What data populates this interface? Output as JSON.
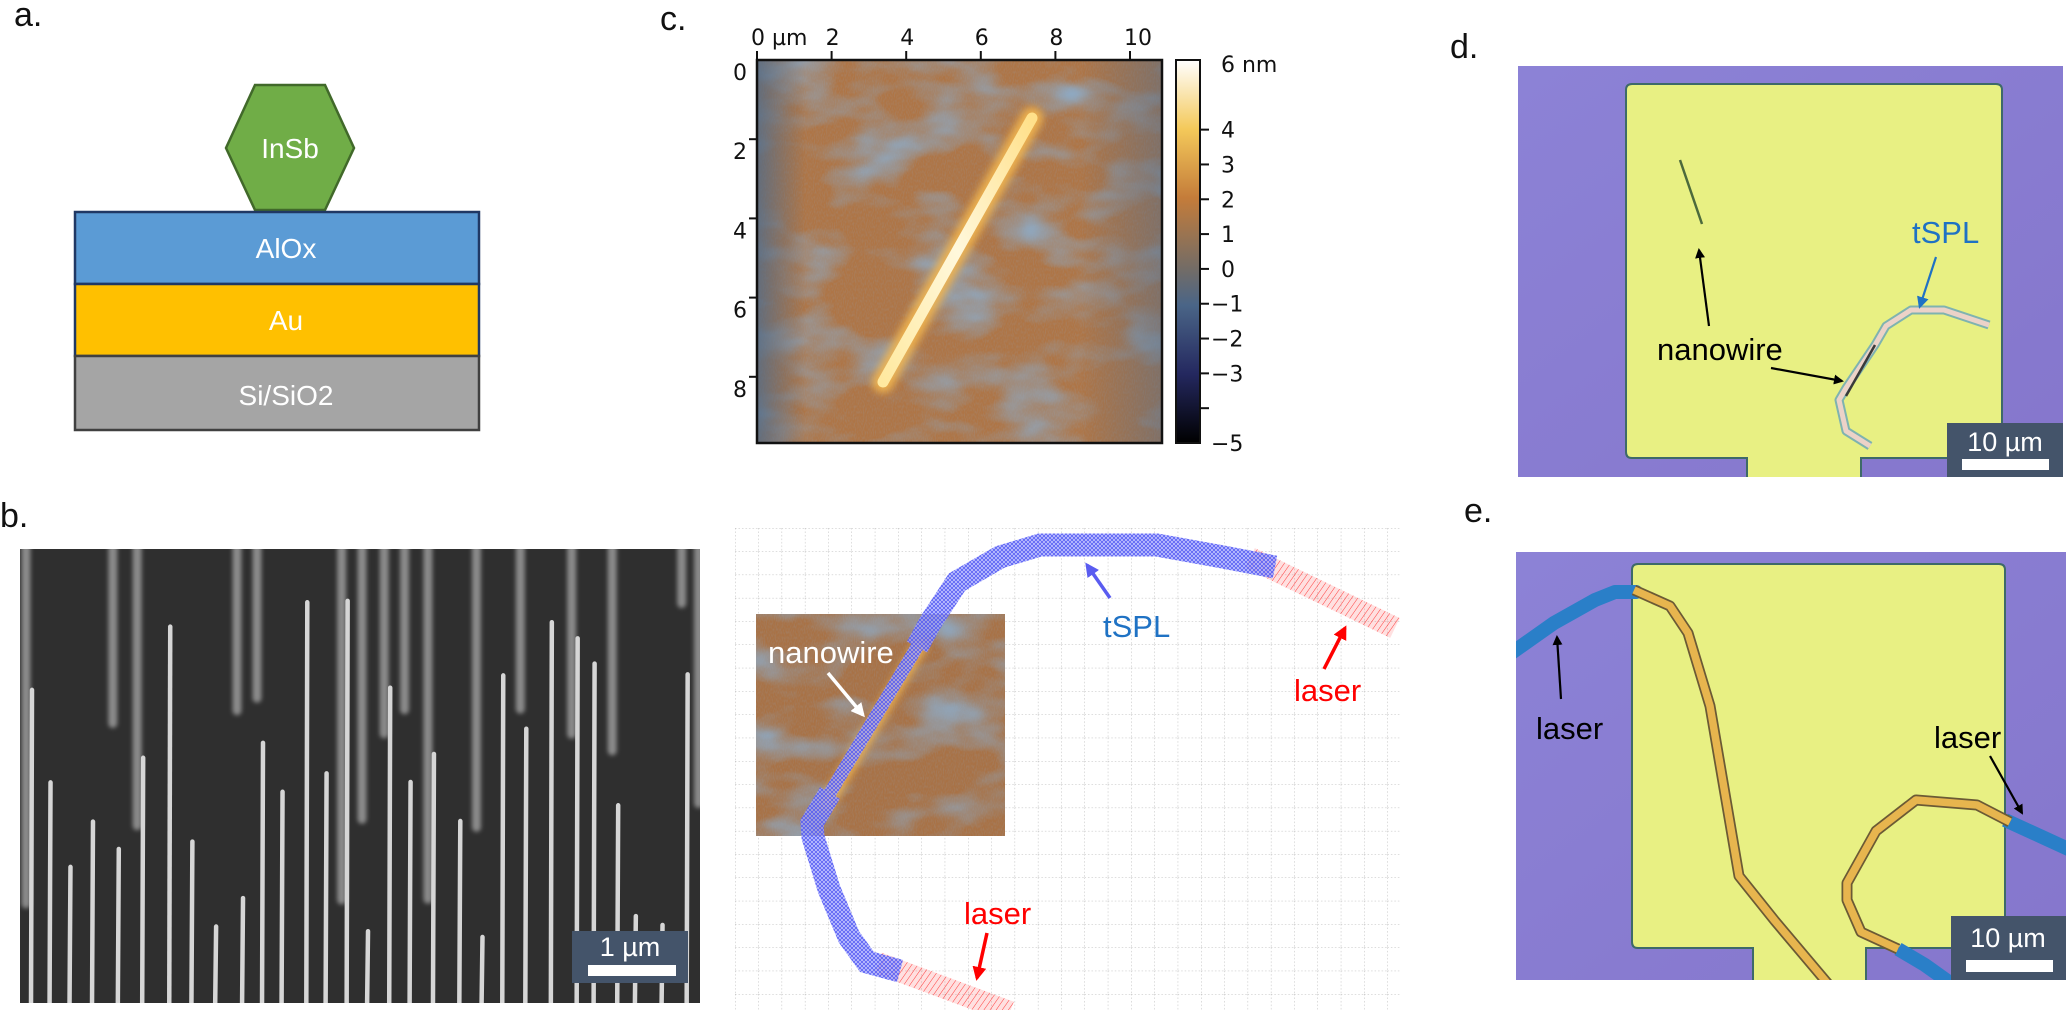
{
  "panels": {
    "a": {
      "label": "a.",
      "layers": {
        "nanowire": "InSb",
        "oxide": "AlOx",
        "metal": "Au",
        "substrate": "Si/SiO2"
      },
      "colors": {
        "InSb": "#70ad47",
        "AlOx": "#5b9bd5",
        "Au": "#ffc000",
        "Si/SiO2": "#a5a5a5"
      }
    },
    "b": {
      "label": "b.",
      "scale_bar": "1 µm"
    },
    "c": {
      "label": "c.",
      "x_ticks": [
        {
          "value": 0,
          "label": "0 µm"
        },
        {
          "value": 2,
          "label": "2"
        },
        {
          "value": 4,
          "label": "4"
        },
        {
          "value": 6,
          "label": "6"
        },
        {
          "value": 8,
          "label": "8"
        },
        {
          "value": 10,
          "label": "10"
        }
      ],
      "y_ticks": [
        {
          "value": 0,
          "label": "0"
        },
        {
          "value": 2,
          "label": "2"
        },
        {
          "value": 4,
          "label": "4"
        },
        {
          "value": 6,
          "label": "6"
        },
        {
          "value": 8,
          "label": "8"
        }
      ],
      "colorbar": {
        "range_nm": [
          -5,
          6
        ],
        "ticks": [
          {
            "value": 6,
            "label": "6 nm"
          },
          {
            "value": 4,
            "label": "4"
          },
          {
            "value": 3,
            "label": "3"
          },
          {
            "value": 2,
            "label": "2"
          },
          {
            "value": 1,
            "label": "1"
          },
          {
            "value": 0,
            "label": "0"
          },
          {
            "value": -1,
            "label": "−1"
          },
          {
            "value": -2,
            "label": "−2"
          },
          {
            "value": -3,
            "label": "−3"
          },
          {
            "value": -4,
            "label": ""
          },
          {
            "value": -5,
            "label": "−5"
          }
        ]
      }
    },
    "overlay": {
      "nanowire_label": "nanowire",
      "tspl_label": "tSPL",
      "laser_right_label": "laser",
      "laser_bottom_label": "laser",
      "colors": {
        "tSPL": "#1f72c4",
        "laser": "#ff0000",
        "nanowire": "#ffffff"
      }
    },
    "d": {
      "label": "d.",
      "nanowire_label": "nanowire",
      "tspl_label": "tSPL",
      "scale_bar": "10 µm"
    },
    "e": {
      "label": "e.",
      "laser_left_label": "laser",
      "laser_right_label": "laser",
      "scale_bar": "10 µm"
    }
  }
}
